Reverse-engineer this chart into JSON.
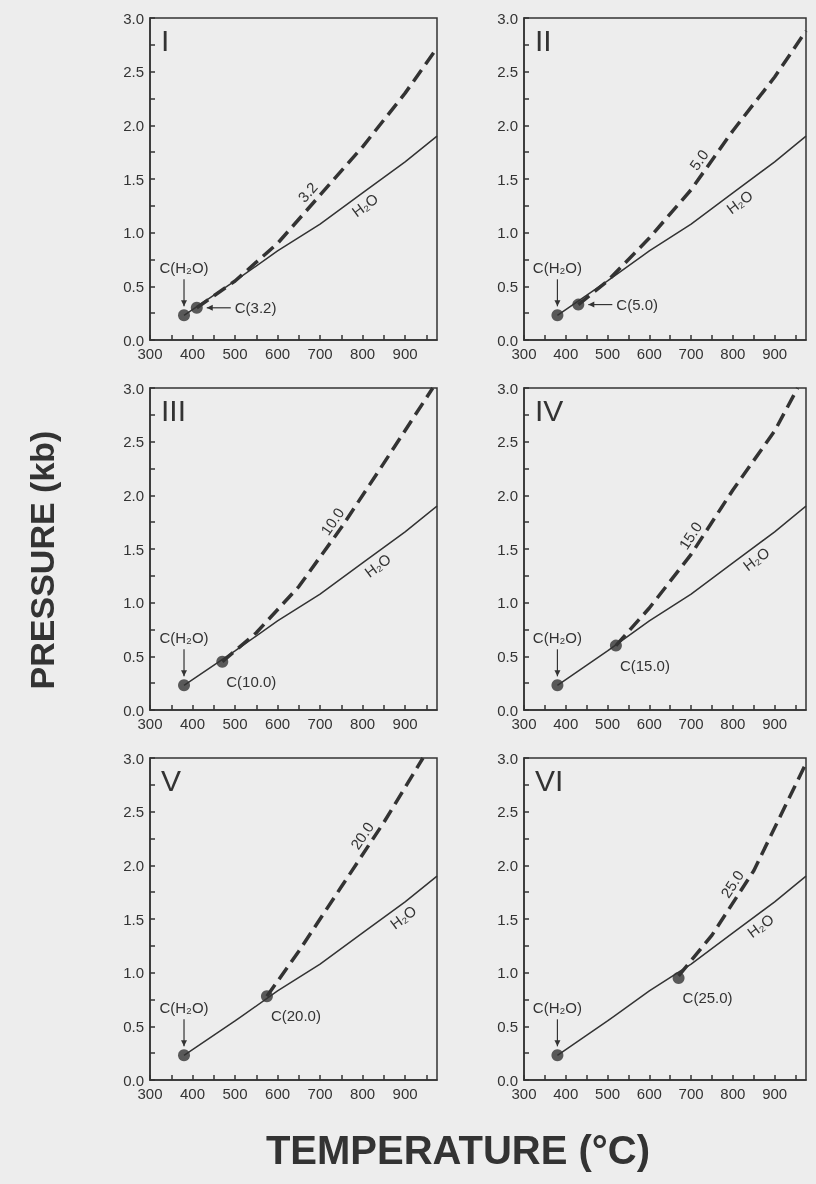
{
  "chart_data": [
    {
      "type": "line",
      "title": "I",
      "ylabel": "PRESSURE (kb)",
      "xlim": [
        300,
        975
      ],
      "ylim": [
        0,
        3
      ],
      "xticks": [
        300,
        {
          "value": 350,
          "label": null
        },
        400,
        {
          "value": 450,
          "label": null
        },
        500,
        {
          "value": 550,
          "label": null
        },
        600,
        {
          "value": 650,
          "label": null
        },
        700,
        {
          "value": 750,
          "label": null
        },
        800,
        {
          "value": 850,
          "label": null
        },
        900,
        {
          "value": 950,
          "label": null
        }
      ],
      "yticks": [
        {
          "value": 0,
          "label": "0.0"
        },
        {
          "value": 0.25,
          "label": null
        },
        0.5,
        {
          "value": 0.75,
          "label": null
        },
        {
          "value": 1,
          "label": "1.0"
        },
        {
          "value": 1.25,
          "label": null
        },
        1.5,
        {
          "value": 1.75,
          "label": null
        },
        {
          "value": 2,
          "label": "2.0"
        },
        {
          "value": 2.25,
          "label": null
        },
        2.5,
        {
          "value": 2.75,
          "label": null
        },
        {
          "value": 3,
          "label": "3.0"
        }
      ],
      "series": [
        {
          "type": "line",
          "line_style": "solid",
          "color": "#333333",
          "x": [
            380,
            500,
            600,
            700,
            800,
            900,
            975
          ],
          "values": [
            0.23,
            0.55,
            0.83,
            1.08,
            1.37,
            1.66,
            1.9
          ]
        },
        {
          "type": "line",
          "line_style": "dashed",
          "color": "#333333",
          "x": [
            410,
            500,
            600,
            700,
            800,
            900,
            975
          ],
          "values": [
            0.3,
            0.55,
            0.9,
            1.35,
            1.8,
            2.3,
            2.72
          ]
        },
        {
          "type": "scatter",
          "marker": "circle",
          "color": "#333333",
          "x": [
            380,
            410
          ],
          "values": [
            0.23,
            0.3
          ]
        }
      ],
      "annotations": [
        {
          "text": "3.2",
          "x": 690,
          "y": 1.31
        },
        {
          "text": "H₂O",
          "x": 790,
          "y": 1.34
        },
        {
          "text": "C(H₂O)",
          "x": 380,
          "y": 0.23
        },
        {
          "text": "C(3.2)",
          "x": 410,
          "y": 0.3
        }
      ]
    },
    {
      "type": "line",
      "title": "II",
      "xlim": [
        300,
        975
      ],
      "ylim": [
        0,
        3
      ],
      "xticks": [
        300,
        {
          "value": 350,
          "label": null
        },
        400,
        {
          "value": 450,
          "label": null
        },
        500,
        {
          "value": 550,
          "label": null
        },
        600,
        {
          "value": 650,
          "label": null
        },
        700,
        {
          "value": 750,
          "label": null
        },
        800,
        {
          "value": 850,
          "label": null
        },
        900,
        {
          "value": 950,
          "label": null
        }
      ],
      "yticks": [
        {
          "value": 0,
          "label": "0.0"
        },
        {
          "value": 0.25,
          "label": null
        },
        0.5,
        {
          "value": 0.75,
          "label": null
        },
        {
          "value": 1,
          "label": "1.0"
        },
        {
          "value": 1.25,
          "label": null
        },
        1.5,
        {
          "value": 1.75,
          "label": null
        },
        {
          "value": 2,
          "label": "2.0"
        },
        {
          "value": 2.25,
          "label": null
        },
        2.5,
        {
          "value": 2.75,
          "label": null
        },
        {
          "value": 3,
          "label": "3.0"
        }
      ],
      "series": [
        {
          "type": "line",
          "line_style": "solid",
          "color": "#333333",
          "x": [
            380,
            500,
            600,
            700,
            800,
            900,
            975
          ],
          "values": [
            0.23,
            0.55,
            0.83,
            1.08,
            1.37,
            1.66,
            1.9
          ]
        },
        {
          "type": "line",
          "line_style": "dashed",
          "color": "#333333",
          "x": [
            430,
            500,
            600,
            700,
            800,
            900,
            975
          ],
          "values": [
            0.33,
            0.55,
            0.95,
            1.4,
            1.95,
            2.45,
            2.88
          ]
        },
        {
          "type": "scatter",
          "marker": "circle",
          "color": "#333333",
          "x": [
            380,
            430
          ],
          "values": [
            0.23,
            0.33
          ]
        }
      ],
      "annotations": [
        {
          "text": "5.0",
          "x": 740,
          "y": 1.62
        },
        {
          "text": "H₂O",
          "x": 800,
          "y": 1.37
        },
        {
          "text": "C(H₂O)",
          "x": 380,
          "y": 0.23
        },
        {
          "text": "C(5.0)",
          "x": 430,
          "y": 0.33
        }
      ]
    },
    {
      "type": "line",
      "title": "III",
      "xlim": [
        300,
        975
      ],
      "ylim": [
        0,
        3
      ],
      "xticks": [
        300,
        {
          "value": 350,
          "label": null
        },
        400,
        {
          "value": 450,
          "label": null
        },
        500,
        {
          "value": 550,
          "label": null
        },
        600,
        {
          "value": 650,
          "label": null
        },
        700,
        {
          "value": 750,
          "label": null
        },
        800,
        {
          "value": 850,
          "label": null
        },
        900,
        {
          "value": 950,
          "label": null
        }
      ],
      "yticks": [
        {
          "value": 0,
          "label": "0.0"
        },
        {
          "value": 0.25,
          "label": null
        },
        0.5,
        {
          "value": 0.75,
          "label": null
        },
        {
          "value": 1,
          "label": "1.0"
        },
        {
          "value": 1.25,
          "label": null
        },
        1.5,
        {
          "value": 1.75,
          "label": null
        },
        {
          "value": 2,
          "label": "2.0"
        },
        {
          "value": 2.25,
          "label": null
        },
        2.5,
        {
          "value": 2.75,
          "label": null
        },
        {
          "value": 3,
          "label": "3.0"
        }
      ],
      "series": [
        {
          "type": "line",
          "line_style": "solid",
          "color": "#333333",
          "x": [
            380,
            500,
            600,
            700,
            800,
            900,
            975
          ],
          "values": [
            0.23,
            0.55,
            0.83,
            1.08,
            1.37,
            1.66,
            1.9
          ]
        },
        {
          "type": "line",
          "line_style": "dashed",
          "color": "#333333",
          "x": [
            470,
            550,
            650,
            750,
            850,
            965
          ],
          "values": [
            0.45,
            0.72,
            1.15,
            1.7,
            2.3,
            3.0
          ]
        },
        {
          "type": "scatter",
          "marker": "circle",
          "color": "#333333",
          "x": [
            380,
            470
          ],
          "values": [
            0.23,
            0.45
          ]
        }
      ],
      "annotations": [
        {
          "text": "10.0",
          "x": 750,
          "y": 1.7
        },
        {
          "text": "H₂O",
          "x": 820,
          "y": 1.43
        },
        {
          "text": "C(H₂O)",
          "x": 380,
          "y": 0.23
        },
        {
          "text": "C(10.0)",
          "x": 470,
          "y": 0.45
        }
      ]
    },
    {
      "type": "line",
      "title": "IV",
      "xlim": [
        300,
        975
      ],
      "ylim": [
        0,
        3
      ],
      "xticks": [
        300,
        {
          "value": 350,
          "label": null
        },
        400,
        {
          "value": 450,
          "label": null
        },
        500,
        {
          "value": 550,
          "label": null
        },
        600,
        {
          "value": 650,
          "label": null
        },
        700,
        {
          "value": 750,
          "label": null
        },
        800,
        {
          "value": 850,
          "label": null
        },
        900,
        {
          "value": 950,
          "label": null
        }
      ],
      "yticks": [
        {
          "value": 0,
          "label": "0.0"
        },
        {
          "value": 0.25,
          "label": null
        },
        0.5,
        {
          "value": 0.75,
          "label": null
        },
        {
          "value": 1,
          "label": "1.0"
        },
        {
          "value": 1.25,
          "label": null
        },
        1.5,
        {
          "value": 1.75,
          "label": null
        },
        {
          "value": 2,
          "label": "2.0"
        },
        {
          "value": 2.25,
          "label": null
        },
        2.5,
        {
          "value": 2.75,
          "label": null
        },
        {
          "value": 3,
          "label": "3.0"
        }
      ],
      "series": [
        {
          "type": "line",
          "line_style": "solid",
          "color": "#333333",
          "x": [
            380,
            500,
            600,
            700,
            800,
            900,
            975
          ],
          "values": [
            0.23,
            0.55,
            0.83,
            1.08,
            1.37,
            1.66,
            1.9
          ]
        },
        {
          "type": "line",
          "line_style": "dashed",
          "color": "#333333",
          "x": [
            520,
            600,
            700,
            800,
            900,
            955
          ],
          "values": [
            0.6,
            0.95,
            1.45,
            2.05,
            2.6,
            3.0
          ]
        },
        {
          "type": "scatter",
          "marker": "circle",
          "color": "#333333",
          "x": [
            380,
            520
          ],
          "values": [
            0.23,
            0.6
          ]
        }
      ],
      "annotations": [
        {
          "text": "15.0",
          "x": 720,
          "y": 1.57
        },
        {
          "text": "H₂O",
          "x": 840,
          "y": 1.49
        },
        {
          "text": "C(H₂O)",
          "x": 380,
          "y": 0.23
        },
        {
          "text": "C(15.0)",
          "x": 520,
          "y": 0.6
        }
      ]
    },
    {
      "type": "line",
      "title": "V",
      "xlim": [
        300,
        975
      ],
      "ylim": [
        0,
        3
      ],
      "xticks": [
        300,
        {
          "value": 350,
          "label": null
        },
        400,
        {
          "value": 450,
          "label": null
        },
        500,
        {
          "value": 550,
          "label": null
        },
        600,
        {
          "value": 650,
          "label": null
        },
        700,
        {
          "value": 750,
          "label": null
        },
        800,
        {
          "value": 850,
          "label": null
        },
        900,
        {
          "value": 950,
          "label": null
        }
      ],
      "yticks": [
        {
          "value": 0,
          "label": "0.0"
        },
        {
          "value": 0.25,
          "label": null
        },
        0.5,
        {
          "value": 0.75,
          "label": null
        },
        {
          "value": 1,
          "label": "1.0"
        },
        {
          "value": 1.25,
          "label": null
        },
        1.5,
        {
          "value": 1.75,
          "label": null
        },
        {
          "value": 2,
          "label": "2.0"
        },
        {
          "value": 2.25,
          "label": null
        },
        2.5,
        {
          "value": 2.75,
          "label": null
        },
        {
          "value": 3,
          "label": "3.0"
        }
      ],
      "series": [
        {
          "type": "line",
          "line_style": "solid",
          "color": "#333333",
          "x": [
            380,
            500,
            600,
            700,
            800,
            900,
            975
          ],
          "values": [
            0.23,
            0.55,
            0.83,
            1.08,
            1.37,
            1.66,
            1.9
          ]
        },
        {
          "type": "line",
          "line_style": "dashed",
          "color": "#333333",
          "x": [
            575,
            650,
            750,
            850,
            942
          ],
          "values": [
            0.78,
            1.2,
            1.8,
            2.4,
            3.0
          ]
        },
        {
          "type": "scatter",
          "marker": "circle",
          "color": "#333333",
          "x": [
            380,
            575
          ],
          "values": [
            0.23,
            0.78
          ]
        }
      ],
      "annotations": [
        {
          "text": "20.0",
          "x": 820,
          "y": 2.22
        },
        {
          "text": "H₂O",
          "x": 880,
          "y": 1.6
        },
        {
          "text": "C(H₂O)",
          "x": 380,
          "y": 0.23
        },
        {
          "text": "C(20.0)",
          "x": 575,
          "y": 0.78
        }
      ]
    },
    {
      "type": "line",
      "title": "VI",
      "xlabel": "TEMPERATURE (°C)",
      "xlim": [
        300,
        975
      ],
      "ylim": [
        0,
        3
      ],
      "xticks": [
        300,
        {
          "value": 350,
          "label": null
        },
        400,
        {
          "value": 450,
          "label": null
        },
        500,
        {
          "value": 550,
          "label": null
        },
        600,
        {
          "value": 650,
          "label": null
        },
        700,
        {
          "value": 750,
          "label": null
        },
        800,
        {
          "value": 850,
          "label": null
        },
        900,
        {
          "value": 950,
          "label": null
        }
      ],
      "yticks": [
        {
          "value": 0,
          "label": "0.0"
        },
        {
          "value": 0.25,
          "label": null
        },
        0.5,
        {
          "value": 0.75,
          "label": null
        },
        {
          "value": 1,
          "label": "1.0"
        },
        {
          "value": 1.25,
          "label": null
        },
        1.5,
        {
          "value": 1.75,
          "label": null
        },
        {
          "value": 2,
          "label": "2.0"
        },
        {
          "value": 2.25,
          "label": null
        },
        2.5,
        {
          "value": 2.75,
          "label": null
        },
        {
          "value": 3,
          "label": "3.0"
        }
      ],
      "series": [
        {
          "type": "line",
          "line_style": "solid",
          "color": "#333333",
          "x": [
            380,
            500,
            600,
            700,
            800,
            900,
            975
          ],
          "values": [
            0.23,
            0.55,
            0.83,
            1.08,
            1.37,
            1.66,
            1.9
          ]
        },
        {
          "type": "line",
          "line_style": "dashed",
          "color": "#333333",
          "x": [
            670,
            750,
            850,
            975
          ],
          "values": [
            0.97,
            1.35,
            1.95,
            2.95
          ]
        },
        {
          "type": "scatter",
          "marker": "circle",
          "color": "#333333",
          "x": [
            380,
            670
          ],
          "values": [
            0.23,
            0.95
          ]
        }
      ],
      "annotations": [
        {
          "text": "25.0",
          "x": 820,
          "y": 1.77
        },
        {
          "text": "H₂O",
          "x": 850,
          "y": 1.52
        },
        {
          "text": "C(H₂O)",
          "x": 380,
          "y": 0.23
        },
        {
          "text": "C(25.0)",
          "x": 670,
          "y": 0.95
        }
      ]
    }
  ]
}
